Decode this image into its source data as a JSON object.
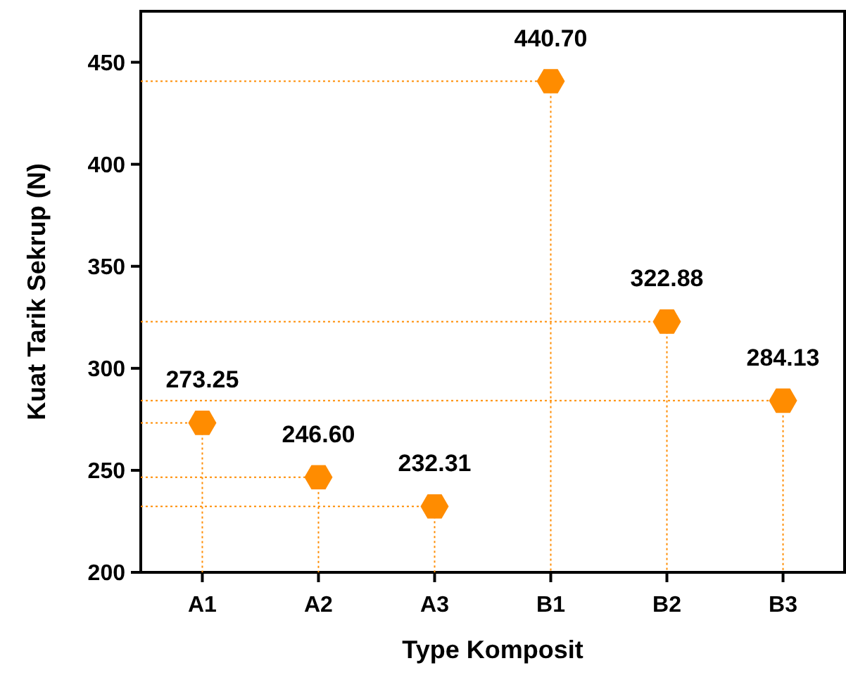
{
  "chart_data": {
    "type": "lollipop",
    "xlabel": "Type Komposit",
    "ylabel": "Kuat Tarik Sekrup (N)",
    "categories": [
      "A1",
      "A2",
      "A3",
      "B1",
      "B2",
      "B3"
    ],
    "series": [
      {
        "color": "#ff8c00",
        "values": [
          273.25,
          246.6,
          232.31,
          440.7,
          322.88,
          284.13
        ],
        "value_labels": [
          "273.25",
          "246.60",
          "232.31",
          "440.70",
          "322.88",
          "284.13"
        ]
      }
    ],
    "ylim": [
      200,
      475
    ],
    "yticks": [
      200,
      250,
      300,
      350,
      400,
      450
    ],
    "line_style": "dotted",
    "ref_lines": [
      {
        "axis": "y",
        "value": 273.25,
        "color": "#ff8c00",
        "line_style": "dotted"
      },
      {
        "axis": "y",
        "value": 246.6,
        "color": "#ff8c00",
        "line_style": "dotted"
      },
      {
        "axis": "y",
        "value": 232.31,
        "color": "#ff8c00",
        "line_style": "dotted"
      },
      {
        "axis": "y",
        "value": 440.7,
        "color": "#ff8c00",
        "line_style": "dotted"
      },
      {
        "axis": "y",
        "value": 322.88,
        "color": "#ff8c00",
        "line_style": "dotted"
      },
      {
        "axis": "y",
        "value": 284.13,
        "color": "#ff8c00",
        "line_style": "dotted"
      }
    ]
  }
}
